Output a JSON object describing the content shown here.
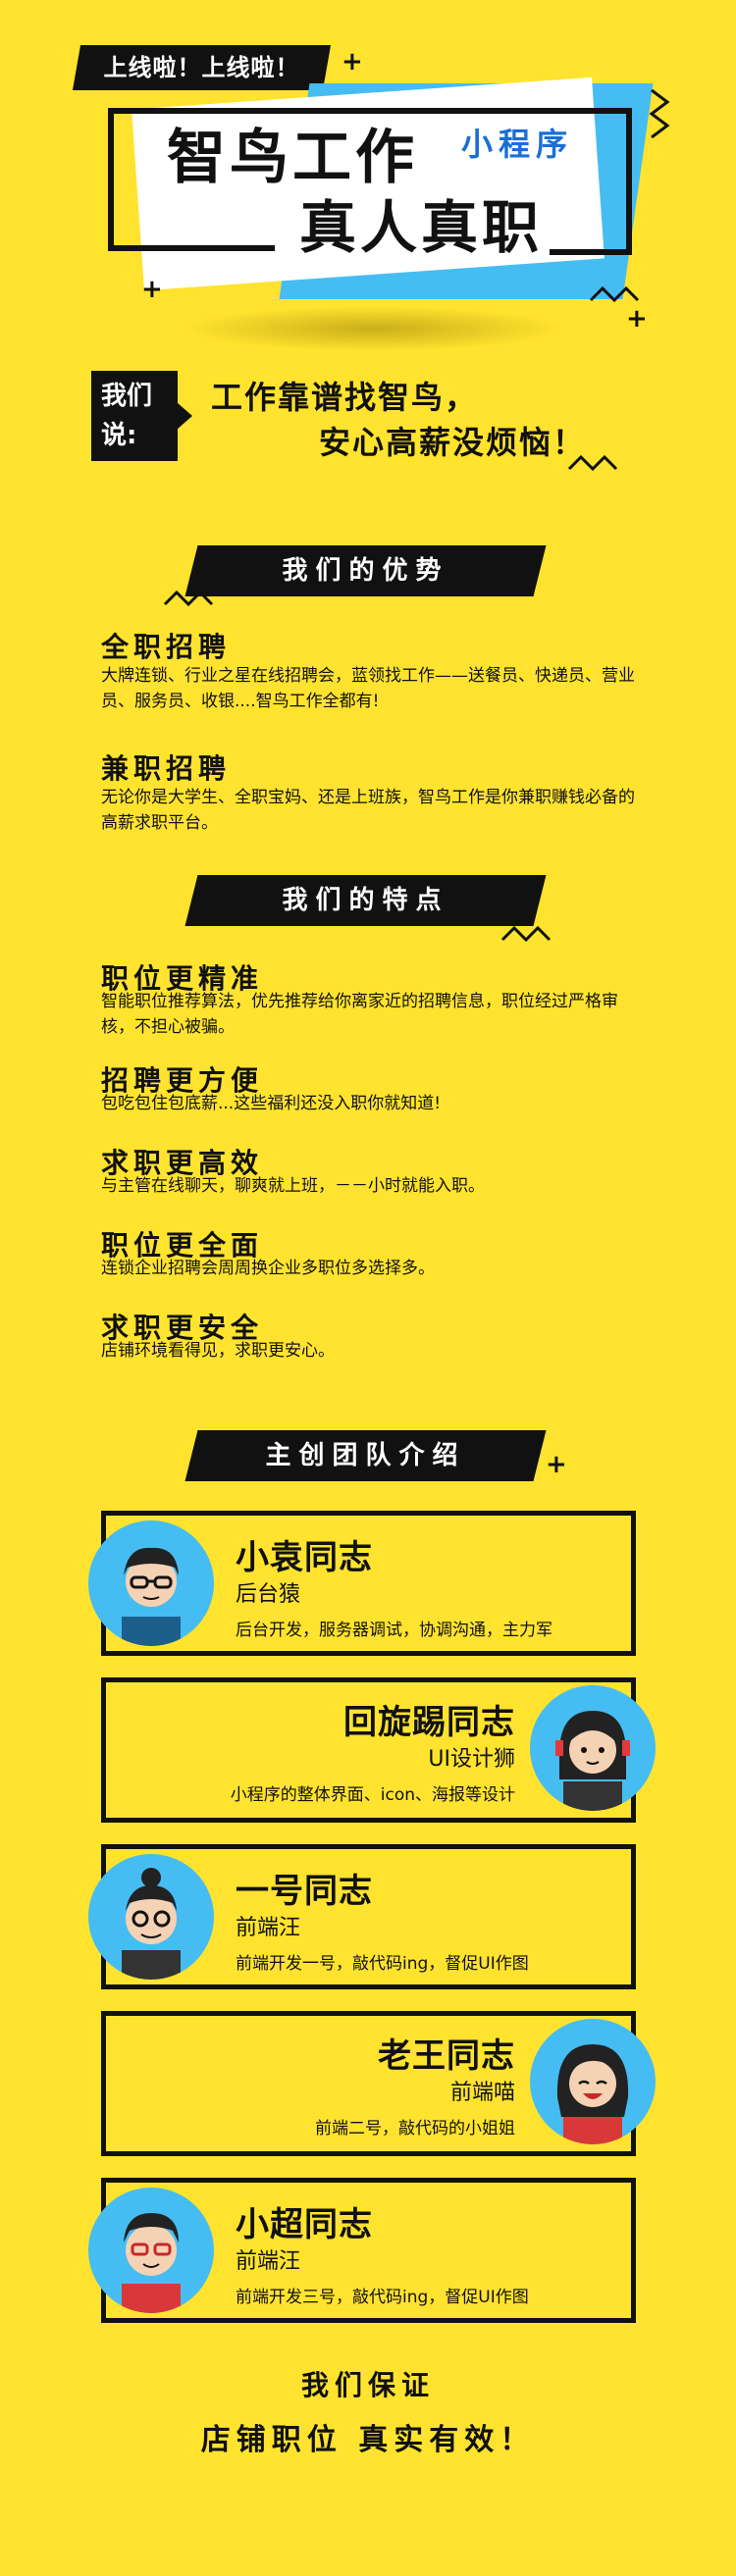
{
  "header": {
    "tag": "上线啦！上线啦！",
    "title_line1": "智鸟工作",
    "title_line2": "真人真职",
    "mini_program": "小程序"
  },
  "we_say": {
    "label_line1": "我们",
    "label_line2": "说:",
    "slogan_line1": "工作靠谱找智鸟，",
    "slogan_line2": "安心高薪没烦恼！"
  },
  "advantages": {
    "heading": "我们的优势",
    "items": [
      {
        "title": "全职招聘",
        "desc": "大牌连锁、行业之星在线招聘会，蓝领找工作——送餐员、快递员、营业员、服务员、收银....智鸟工作全都有!"
      },
      {
        "title": "兼职招聘",
        "desc": "无论你是大学生、全职宝妈、还是上班族，智鸟工作是你兼职赚钱必备的高薪求职平台。"
      }
    ]
  },
  "features": {
    "heading": "我们的特点",
    "items": [
      {
        "title": "职位更精准",
        "desc": "智能职位推荐算法，优先推荐给你离家近的招聘信息，职位经过严格审核，不担心被骗。"
      },
      {
        "title": "招聘更方便",
        "desc": "包吃包住包底薪...这些福利还没入职你就知道!"
      },
      {
        "title": "求职更高效",
        "desc": "与主管在线聊天，聊爽就上班，－－小时就能入职。"
      },
      {
        "title": "职位更全面",
        "desc": "连锁企业招聘会周周换企业多职位多选择多。"
      },
      {
        "title": "求职更安全",
        "desc": "店铺环境看得见，求职更安心。"
      }
    ]
  },
  "team": {
    "heading": "主创团队介绍",
    "members": [
      {
        "name": "小袁同志",
        "role": "后台猿",
        "desc": "后台开发，服务器调试，协调沟通，主力军"
      },
      {
        "name": "回旋踢同志",
        "role": "UI设计狮",
        "desc": "小程序的整体界面、icon、海报等设计"
      },
      {
        "name": "一号同志",
        "role": "前端汪",
        "desc": "前端开发一号，敲代码ing，督促UI作图"
      },
      {
        "name": "老王同志",
        "role": "前端喵",
        "desc": "前端二号，敲代码的小姐姐"
      },
      {
        "name": "小超同志",
        "role": "前端汪",
        "desc": "前端开发三号，敲代码ing，督促UI作图"
      }
    ]
  },
  "footer": {
    "line1": "我们保证",
    "line2": "店铺职位  真实有效！"
  },
  "colors": {
    "background": "#FFE32E",
    "accent_blue": "#45BDF2",
    "ink": "#111111"
  }
}
